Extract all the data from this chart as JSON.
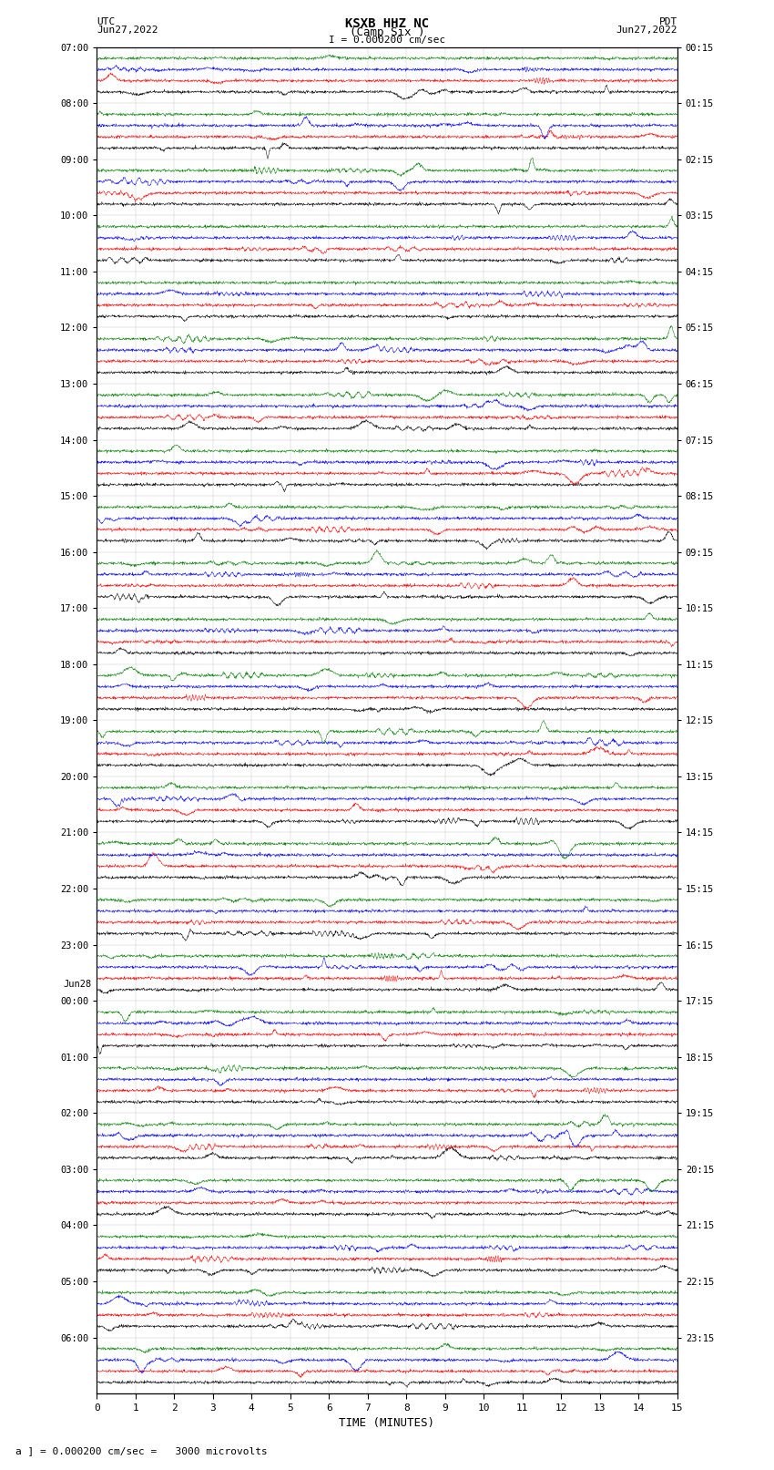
{
  "title_line1": "KSXB HHZ NC",
  "title_line2": "(Camp Six )",
  "scale_text": "I = 0.000200 cm/sec",
  "bottom_scale_text": "a ] = 0.000200 cm/sec =   3000 microvolts",
  "utc_label": "UTC",
  "utc_date": "Jun27,2022",
  "pdt_label": "PDT",
  "pdt_date": "Jun27,2022",
  "xlabel": "TIME (MINUTES)",
  "num_rows": 24,
  "traces_per_row": 4,
  "trace_colors": [
    "black",
    "red",
    "blue",
    "green"
  ],
  "bg_color": "white",
  "left_tick_labels": [
    "07:00",
    "08:00",
    "09:00",
    "10:00",
    "11:00",
    "12:00",
    "13:00",
    "14:00",
    "15:00",
    "16:00",
    "17:00",
    "18:00",
    "19:00",
    "20:00",
    "21:00",
    "22:00",
    "23:00",
    "00:00",
    "01:00",
    "02:00",
    "03:00",
    "04:00",
    "05:00",
    "06:00"
  ],
  "right_tick_labels": [
    "00:15",
    "01:15",
    "02:15",
    "03:15",
    "04:15",
    "05:15",
    "06:15",
    "07:15",
    "08:15",
    "09:15",
    "10:15",
    "11:15",
    "12:15",
    "13:15",
    "14:15",
    "15:15",
    "16:15",
    "17:15",
    "18:15",
    "19:15",
    "20:15",
    "21:15",
    "22:15",
    "23:15"
  ],
  "jun28_label": "Jun28",
  "jun28_row_idx": 17,
  "xmin": 0,
  "xmax": 15,
  "xticks": [
    0,
    1,
    2,
    3,
    4,
    5,
    6,
    7,
    8,
    9,
    10,
    11,
    12,
    13,
    14,
    15
  ],
  "grid_color": "#999999",
  "fig_width": 8.5,
  "fig_height": 16.13,
  "dpi": 100
}
